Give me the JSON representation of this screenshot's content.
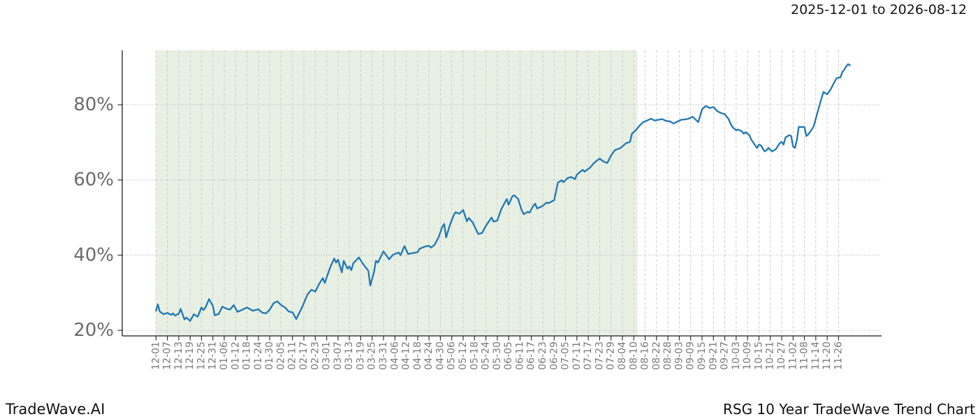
{
  "header": {
    "date_range": "2025-12-01 to 2026-08-12"
  },
  "footer": {
    "brand": "TradeWave.AI",
    "chart_title": "RSG 10 Year TradeWave Trend Chart"
  },
  "chart_data": {
    "type": "line",
    "title": "RSG 10 Year TradeWave Trend Chart",
    "subtitle": "2025-12-01 to 2026-08-12",
    "xlabel": "",
    "ylabel": "",
    "grid": true,
    "legend": "none",
    "ylim": [
      18.5,
      94.5
    ],
    "y_ticks": [
      20,
      40,
      60,
      80
    ],
    "y_tick_labels": [
      "20%",
      "40%",
      "60%",
      "80%"
    ],
    "x_tick_spacing_days": 6,
    "x_tick_labels": [
      "12-01",
      "12-07",
      "12-13",
      "12-19",
      "12-25",
      "12-31",
      "01-06",
      "01-12",
      "01-18",
      "01-24",
      "01-30",
      "02-05",
      "02-11",
      "02-17",
      "02-23",
      "03-01",
      "03-07",
      "03-13",
      "03-19",
      "03-25",
      "03-31",
      "04-06",
      "04-12",
      "04-18",
      "04-24",
      "04-30",
      "05-06",
      "05-12",
      "05-18",
      "05-24",
      "05-30",
      "06-05",
      "06-11",
      "06-17",
      "06-23",
      "06-29",
      "07-05",
      "07-11",
      "07-17",
      "07-23",
      "07-29",
      "08-04",
      "08-10",
      "08-16",
      "08-22",
      "08-28",
      "09-03",
      "09-09",
      "09-15",
      "09-21",
      "09-27",
      "10-03",
      "10-09",
      "10-15",
      "10-21",
      "10-27",
      "11-02",
      "11-08",
      "11-14",
      "11-20",
      "11-26"
    ],
    "shaded_region": {
      "start_day": 0,
      "end_day": 254,
      "start_label": "12-01",
      "end_label": "08-12",
      "color": "#e8f0e4"
    },
    "colors": {
      "line": "#1f77b4",
      "grid_dashed": "#c9c9c9",
      "grid_dotted": "#b3b3b3",
      "spine": "#1a1a1a",
      "tick_mark": "#222222",
      "x_tick_label": "#7a7a7a",
      "y_tick_label": "#6b6b6b",
      "background": "#ffffff"
    },
    "series": [
      {
        "name": "trend",
        "unit": "%",
        "points": [
          [
            0,
            25.2
          ],
          [
            1,
            26.9
          ],
          [
            2,
            25.0
          ],
          [
            4,
            24.3
          ],
          [
            6,
            24.6
          ],
          [
            8,
            24.1
          ],
          [
            9,
            24.5
          ],
          [
            10,
            23.9
          ],
          [
            12,
            24.4
          ],
          [
            13,
            25.7
          ],
          [
            15,
            22.9
          ],
          [
            16,
            23.4
          ],
          [
            18,
            22.5
          ],
          [
            20,
            24.3
          ],
          [
            22,
            23.6
          ],
          [
            24,
            26.1
          ],
          [
            25,
            25.4
          ],
          [
            26,
            26.0
          ],
          [
            28,
            28.3
          ],
          [
            30,
            26.5
          ],
          [
            31,
            24.0
          ],
          [
            33,
            24.3
          ],
          [
            35,
            26.3
          ],
          [
            37,
            25.8
          ],
          [
            39,
            25.5
          ],
          [
            41,
            26.7
          ],
          [
            43,
            24.9
          ],
          [
            46,
            25.6
          ],
          [
            48,
            26.1
          ],
          [
            51,
            25.2
          ],
          [
            54,
            25.6
          ],
          [
            56,
            24.7
          ],
          [
            58,
            24.5
          ],
          [
            60,
            25.5
          ],
          [
            62,
            27.2
          ],
          [
            64,
            27.7
          ],
          [
            66,
            26.7
          ],
          [
            68,
            26.1
          ],
          [
            70,
            25.0
          ],
          [
            72,
            24.8
          ],
          [
            74,
            23.0
          ],
          [
            77,
            26.1
          ],
          [
            80,
            29.6
          ],
          [
            82,
            30.8
          ],
          [
            84,
            30.3
          ],
          [
            86,
            32.3
          ],
          [
            88,
            33.9
          ],
          [
            89,
            32.6
          ],
          [
            92,
            36.9
          ],
          [
            94,
            39.1
          ],
          [
            95,
            38.0
          ],
          [
            96,
            38.8
          ],
          [
            98,
            35.4
          ],
          [
            99,
            38.5
          ],
          [
            101,
            36.4
          ],
          [
            102,
            37.0
          ],
          [
            103,
            36.0
          ],
          [
            104,
            37.8
          ],
          [
            107,
            39.4
          ],
          [
            109,
            37.8
          ],
          [
            112,
            35.8
          ],
          [
            113,
            31.9
          ],
          [
            115,
            35.5
          ],
          [
            116,
            38.5
          ],
          [
            117,
            38.0
          ],
          [
            120,
            41.0
          ],
          [
            122,
            39.6
          ],
          [
            123,
            38.9
          ],
          [
            125,
            40.1
          ],
          [
            128,
            40.7
          ],
          [
            129,
            40.0
          ],
          [
            131,
            42.4
          ],
          [
            133,
            40.3
          ],
          [
            135,
            40.5
          ],
          [
            138,
            40.8
          ],
          [
            139,
            41.7
          ],
          [
            142,
            42.3
          ],
          [
            144,
            42.5
          ],
          [
            145,
            42.0
          ],
          [
            147,
            42.8
          ],
          [
            149,
            44.7
          ],
          [
            151,
            47.5
          ],
          [
            152,
            48.3
          ],
          [
            153,
            44.7
          ],
          [
            155,
            48.0
          ],
          [
            157,
            50.6
          ],
          [
            158,
            51.4
          ],
          [
            160,
            51.0
          ],
          [
            162,
            52.0
          ],
          [
            164,
            49.0
          ],
          [
            165,
            49.9
          ],
          [
            167,
            48.7
          ],
          [
            169,
            46.6
          ],
          [
            170,
            45.6
          ],
          [
            172,
            45.9
          ],
          [
            174,
            47.8
          ],
          [
            176,
            49.3
          ],
          [
            177,
            50.0
          ],
          [
            178,
            48.9
          ],
          [
            180,
            49.2
          ],
          [
            182,
            52.1
          ],
          [
            184,
            54.0
          ],
          [
            185,
            54.9
          ],
          [
            186,
            53.4
          ],
          [
            188,
            55.7
          ],
          [
            189,
            55.9
          ],
          [
            191,
            54.9
          ],
          [
            193,
            51.8
          ],
          [
            194,
            50.9
          ],
          [
            196,
            51.5
          ],
          [
            197,
            51.3
          ],
          [
            199,
            53.1
          ],
          [
            200,
            53.7
          ],
          [
            201,
            52.4
          ],
          [
            204,
            53.1
          ],
          [
            206,
            54.0
          ],
          [
            207,
            53.8
          ],
          [
            210,
            54.6
          ],
          [
            212,
            59.3
          ],
          [
            214,
            59.9
          ],
          [
            215,
            59.4
          ],
          [
            217,
            60.5
          ],
          [
            219,
            60.8
          ],
          [
            221,
            60.2
          ],
          [
            222,
            61.4
          ],
          [
            225,
            62.7
          ],
          [
            226,
            62.2
          ],
          [
            229,
            63.3
          ],
          [
            231,
            64.5
          ],
          [
            234,
            65.7
          ],
          [
            236,
            64.9
          ],
          [
            238,
            64.5
          ],
          [
            240,
            66.5
          ],
          [
            242,
            67.9
          ],
          [
            245,
            68.5
          ],
          [
            248,
            69.8
          ],
          [
            250,
            70.1
          ],
          [
            251,
            72.3
          ],
          [
            253,
            73.2
          ],
          [
            255,
            74.4
          ],
          [
            257,
            75.4
          ],
          [
            259,
            75.8
          ],
          [
            261,
            76.3
          ],
          [
            263,
            75.8
          ],
          [
            265,
            76.0
          ],
          [
            267,
            76.2
          ],
          [
            269,
            75.7
          ],
          [
            271,
            75.6
          ],
          [
            273,
            75.0
          ],
          [
            275,
            75.5
          ],
          [
            277,
            76.0
          ],
          [
            279,
            76.1
          ],
          [
            281,
            76.3
          ],
          [
            283,
            76.8
          ],
          [
            286,
            75.4
          ],
          [
            288,
            78.8
          ],
          [
            290,
            79.7
          ],
          [
            292,
            79.1
          ],
          [
            294,
            79.4
          ],
          [
            296,
            78.3
          ],
          [
            298,
            77.8
          ],
          [
            300,
            77.5
          ],
          [
            302,
            76.2
          ],
          [
            303,
            75.0
          ],
          [
            304,
            74.1
          ],
          [
            306,
            73.2
          ],
          [
            307,
            73.4
          ],
          [
            309,
            72.9
          ],
          [
            310,
            72.3
          ],
          [
            311,
            72.7
          ],
          [
            313,
            71.9
          ],
          [
            314,
            70.7
          ],
          [
            316,
            69.2
          ],
          [
            317,
            68.5
          ],
          [
            318,
            69.4
          ],
          [
            319,
            69.2
          ],
          [
            321,
            67.6
          ],
          [
            322,
            67.9
          ],
          [
            323,
            68.5
          ],
          [
            325,
            67.6
          ],
          [
            327,
            68.2
          ],
          [
            329,
            69.8
          ],
          [
            330,
            70.1
          ],
          [
            331,
            69.4
          ],
          [
            332,
            71.3
          ],
          [
            334,
            71.9
          ],
          [
            335,
            71.7
          ],
          [
            336,
            68.9
          ],
          [
            337,
            68.5
          ],
          [
            338,
            70.7
          ],
          [
            339,
            74.1
          ],
          [
            342,
            74.1
          ],
          [
            343,
            71.7
          ],
          [
            344,
            72.1
          ],
          [
            346,
            73.5
          ],
          [
            347,
            74.4
          ],
          [
            348,
            76.3
          ],
          [
            349,
            78.1
          ],
          [
            350,
            80.0
          ],
          [
            352,
            83.4
          ],
          [
            353,
            83.1
          ],
          [
            354,
            82.8
          ],
          [
            356,
            84.2
          ],
          [
            357,
            85.3
          ],
          [
            359,
            87.1
          ],
          [
            361,
            87.3
          ],
          [
            362,
            88.7
          ],
          [
            363,
            89.3
          ],
          [
            364,
            90.2
          ],
          [
            365,
            90.8
          ],
          [
            366,
            90.5
          ]
        ]
      }
    ]
  }
}
